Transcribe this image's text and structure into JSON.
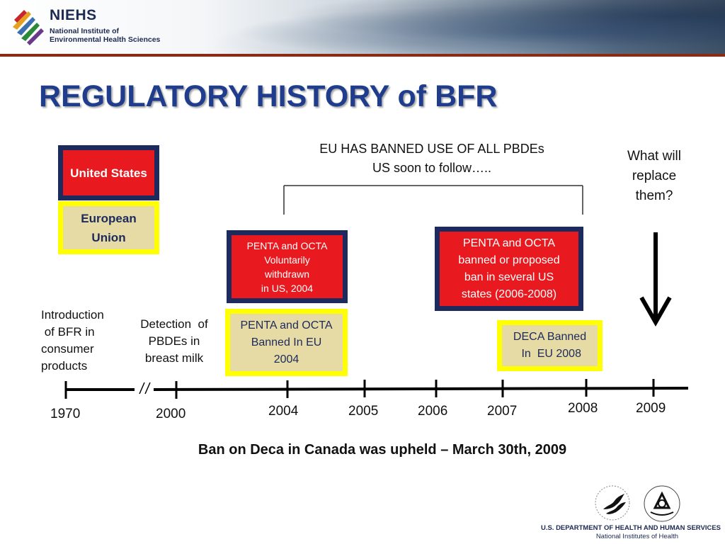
{
  "header": {
    "org_acronym": "NIEHS",
    "org_line1": "National Institute of",
    "org_line2": "Environmental Health Sciences"
  },
  "title": "REGULATORY HISTORY of BFR",
  "legend": {
    "us_label": "United States",
    "eu_label": "European Union"
  },
  "banner_note": {
    "line1": "EU HAS BANNED USE OF ALL PBDEs",
    "line2": "US soon to follow….."
  },
  "question": {
    "line1": "What will",
    "line2": "replace",
    "line3": "them?"
  },
  "events": {
    "us_2004": {
      "line1": "PENTA and OCTA",
      "line2": "Voluntarily",
      "line3": "withdrawn",
      "line4": "in US, 2004"
    },
    "us_2006_2008": {
      "line1": "PENTA and OCTA",
      "line2": "banned or proposed",
      "line3": "ban  in several US",
      "line4": "states  (2006-2008)"
    },
    "eu_2004": {
      "line1": "PENTA and OCTA",
      "line2": "Banned In  EU",
      "line3": "2004"
    },
    "eu_2008": {
      "line1": "DECA Banned",
      "line2": " In  EU 2008"
    }
  },
  "annotations": {
    "introduction": {
      "line1": "Introduction",
      "line2": " of BFR in",
      "line3": "consumer",
      "line4": "products"
    },
    "detection": {
      "line1": "Detection  of",
      "line2": "PBDEs in",
      "line3": "breast milk"
    }
  },
  "timeline": {
    "years": [
      "1970",
      "2000",
      "2004",
      "2005",
      "2006",
      "2007",
      "2008",
      "2009"
    ]
  },
  "canada_note": "Ban on Deca in Canada was upheld – March 30th, 2009",
  "footer": {
    "department": "U.S. DEPARTMENT OF HEALTH AND HUMAN SERVICES",
    "nih": "National Institutes of Health",
    "nih_seal_text": "NATIONAL INSTITUTES OF HEALTH"
  },
  "colors": {
    "title_blue": "#1f3d8c",
    "us_red": "#e8191f",
    "navy_border": "#1d2a5e",
    "eu_tan": "#e6daa5",
    "eu_yellow": "#ffff00",
    "banner_rule": "#8a2b16"
  }
}
